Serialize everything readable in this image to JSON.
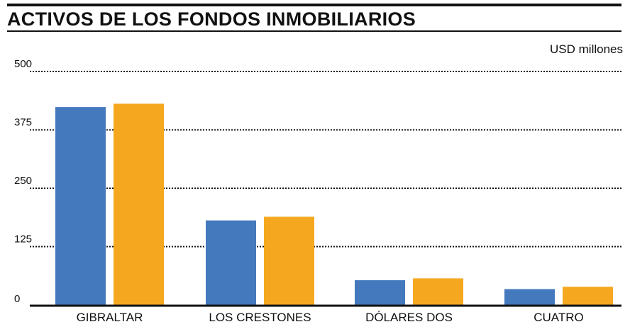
{
  "chart_data": {
    "type": "bar",
    "title": "ACTIVOS DE LOS FONDOS INMOBILIARIOS",
    "unit_label": "USD millones",
    "categories": [
      "GIBRALTAR",
      "LOS CRESTONES",
      "DÓLARES DOS",
      "CUATRO"
    ],
    "series": [
      {
        "values": [
          424,
          181,
          53,
          34
        ],
        "color": "#4479bd"
      },
      {
        "values": [
          431,
          189,
          57,
          39
        ],
        "color": "#f5a81f"
      }
    ],
    "yticks": [
      0,
      125,
      250,
      375,
      500
    ],
    "ylim": [
      0,
      500
    ],
    "grid": true,
    "legend": "none"
  }
}
